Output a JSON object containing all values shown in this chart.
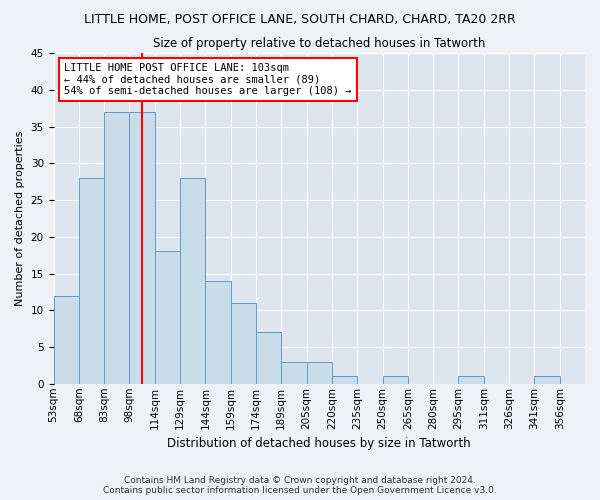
{
  "title1": "LITTLE HOME, POST OFFICE LANE, SOUTH CHARD, CHARD, TA20 2RR",
  "title2": "Size of property relative to detached houses in Tatworth",
  "xlabel": "Distribution of detached houses by size in Tatworth",
  "ylabel": "Number of detached properties",
  "bin_labels": [
    "53sqm",
    "68sqm",
    "83sqm",
    "98sqm",
    "114sqm",
    "129sqm",
    "144sqm",
    "159sqm",
    "174sqm",
    "189sqm",
    "205sqm",
    "220sqm",
    "235sqm",
    "250sqm",
    "265sqm",
    "280sqm",
    "295sqm",
    "311sqm",
    "326sqm",
    "341sqm",
    "356sqm"
  ],
  "values": [
    12,
    28,
    37,
    37,
    18,
    28,
    14,
    11,
    7,
    3,
    3,
    1,
    0,
    1,
    0,
    0,
    1,
    0,
    0,
    1,
    0
  ],
  "bar_color": "#c9dcea",
  "bar_edge_color": "#6699bb",
  "vline_bin": 3.5,
  "vline_color": "red",
  "annotation_text": "LITTLE HOME POST OFFICE LANE: 103sqm\n← 44% of detached houses are smaller (89)\n54% of semi-detached houses are larger (108) →",
  "annotation_box_color": "white",
  "annotation_box_edge": "red",
  "ylim": [
    0,
    45
  ],
  "yticks": [
    0,
    5,
    10,
    15,
    20,
    25,
    30,
    35,
    40,
    45
  ],
  "footer1": "Contains HM Land Registry data © Crown copyright and database right 2024.",
  "footer2": "Contains public sector information licensed under the Open Government Licence v3.0.",
  "bg_color": "#eef2f7",
  "plot_bg_color": "#dde6ef",
  "title_fontsize": 9,
  "subtitle_fontsize": 8.5,
  "xlabel_fontsize": 8.5,
  "ylabel_fontsize": 8,
  "tick_fontsize": 7.5,
  "footer_fontsize": 6.5
}
